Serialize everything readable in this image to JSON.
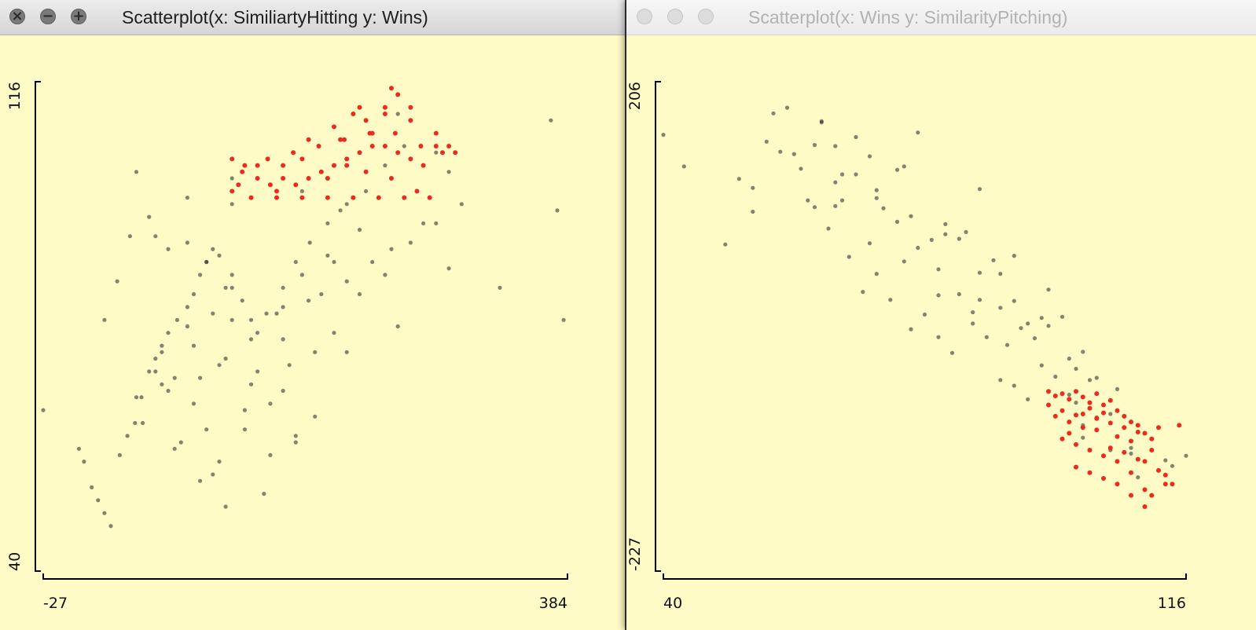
{
  "windows": [
    {
      "title": "Scatterplot(x: SimiliartyHitting y: Wins)",
      "active": true
    },
    {
      "title": "Scatterplot(x: Wins y: SimilarityPitching)",
      "active": false
    }
  ],
  "colors": {
    "background": "#fefbc6",
    "point": "#333333",
    "highlight": "#ee2a1e"
  },
  "chart_data": [
    {
      "type": "scatter",
      "title": "Scatterplot(x: SimiliartyHitting y: Wins)",
      "xlabel": "SimiliartyHitting",
      "ylabel": "Wins",
      "xlim": [
        -27,
        384
      ],
      "ylim": [
        40,
        116
      ],
      "x_tick_labels": [
        "-27",
        "384"
      ],
      "y_tick_labels": [
        "40",
        "116"
      ],
      "grid": false,
      "series": [
        {
          "name": "",
          "color": "#333333",
          "x": [
            -27,
            1,
            5,
            11,
            16,
            21,
            26,
            33,
            39,
            45,
            50,
            56,
            61,
            66,
            71,
            66,
            78,
            86,
            91,
            96,
            101,
            106,
            111,
            116,
            121,
            129,
            136,
            141,
            148,
            161,
            171,
            182,
            196,
            211,
            226,
            241,
            251,
            256,
            271,
            291,
            331,
            376,
            381,
            371,
            46,
            61,
            86,
            121,
            176,
            206,
            221,
            201,
            181,
            156,
            136,
            111,
            96,
            71,
            51,
            81,
            101,
            131,
            151,
            141,
            116,
            91,
            121,
            161,
            191,
            211,
            231,
            246,
            176,
            196,
            161,
            121,
            106,
            86,
            66,
            76,
            91,
            136,
            166,
            211,
            251,
            161,
            131,
            111,
            96,
            151,
            171,
            186,
            101,
            71,
            41,
            31,
            21,
            56,
            121,
            86,
            61,
            46,
            76,
            106,
            116,
            146,
            171,
            186,
            201,
            221,
            241,
            261,
            281,
            301,
            291,
            281
          ],
          "y": [
            65,
            59,
            57,
            53,
            51,
            49,
            47,
            58,
            61,
            63,
            67,
            71,
            73,
            75,
            77,
            69,
            79,
            81,
            83,
            86,
            88,
            90,
            89,
            84,
            86,
            82,
            79,
            77,
            80,
            84,
            88,
            91,
            94,
            97,
            99,
            103,
            111,
            106,
            94,
            87,
            84,
            96,
            79,
            110,
            102,
            92,
            91,
            97,
            99,
            96,
            93,
            88,
            82,
            80,
            76,
            72,
            70,
            68,
            63,
            60,
            62,
            65,
            66,
            71,
            73,
            75,
            79,
            81,
            83,
            85,
            88,
            90,
            86,
            89,
            76,
            84,
            80,
            78,
            74,
            70,
            66,
            69,
            72,
            74,
            78,
            68,
            62,
            57,
            54,
            58,
            61,
            64,
            88,
            90,
            92,
            85,
            79,
            95,
            101,
            98,
            71,
            67,
            59,
            55,
            50,
            52,
            60,
            74,
            77,
            83,
            86,
            91,
            94,
            97,
            102,
            105
          ]
        },
        {
          "name": "",
          "color": "#ee2a1e",
          "x": [
            121,
            129,
            141,
            151,
            161,
            171,
            181,
            191,
            201,
            211,
            221,
            231,
            241,
            251,
            261,
            271,
            281,
            291,
            121,
            136,
            156,
            176,
            196,
            216,
            236,
            256,
            276,
            266,
            246,
            226,
            211,
            196,
            176,
            156,
            141,
            126,
            131,
            149,
            169,
            189,
            209,
            229,
            249,
            269,
            286,
            296,
            281,
            261,
            241,
            221,
            201,
            181,
            161,
            216,
            231,
            241,
            246,
            251,
            261,
            226,
            206
          ],
          "y": [
            104,
            102,
            101,
            100,
            101,
            100,
            101,
            102,
            103,
            104,
            105,
            106,
            106,
            105,
            104,
            103,
            106,
            106,
            99,
            98,
            98,
            98,
            98,
            98,
            98,
            98,
            98,
            99,
            101,
            102,
            103,
            101,
            104,
            99,
            103,
            100,
            103,
            104,
            105,
            106,
            107,
            108,
            108,
            106,
            105,
            105,
            108,
            110,
            111,
            112,
            109,
            107,
            103,
            111,
            108,
            112,
            115,
            114,
            112,
            110,
            107
          ]
        }
      ]
    },
    {
      "type": "scatter",
      "title": "Scatterplot(x: Wins y: SimilarityPitching)",
      "xlabel": "Wins",
      "ylabel": "SimilarityPitching",
      "xlim": [
        40,
        116
      ],
      "ylim": [
        -227,
        206
      ],
      "x_tick_labels": [
        "40",
        "116"
      ],
      "y_tick_labels": [
        "-227",
        "206"
      ],
      "grid": false,
      "series": [
        {
          "name": "",
          "color": "#333333",
          "x": [
            40,
            43,
            49,
            51,
            53,
            55,
            56,
            58,
            59,
            62,
            63,
            65,
            66,
            68,
            70,
            72,
            74,
            75,
            77,
            79,
            81,
            83,
            84,
            86,
            88,
            89,
            91,
            93,
            95,
            96,
            98,
            100,
            101,
            103,
            105,
            106,
            108,
            109,
            111,
            113,
            114,
            116,
            53,
            57,
            61,
            64,
            67,
            69,
            71,
            73,
            76,
            78,
            80,
            82,
            85,
            87,
            89,
            91,
            93,
            96,
            99,
            101,
            103,
            105,
            108,
            60,
            65,
            70,
            75,
            80,
            85,
            90,
            95,
            100,
            102,
            62,
            66,
            71,
            76,
            81,
            86,
            91,
            96,
            101,
            99,
            97,
            94,
            92,
            89,
            86,
            83,
            80,
            77,
            74,
            71,
            68,
            65,
            63
          ],
          "y": [
            159,
            131,
            62,
            120,
            91,
            153,
            178,
            183,
            142,
            95,
            170,
            117,
            101,
            157,
            140,
            94,
            128,
            131,
            161,
            66,
            80,
            67,
            73,
            111,
            48,
            36,
            52,
            -8,
            -3,
            22,
            -2,
            -78,
            -109,
            -56,
            -88,
            -66,
            -118,
            -144,
            -110,
            -129,
            -134,
            -125,
            112,
            144,
            101,
            76,
            51,
            20,
            36,
            13,
            -13,
            0,
            -20,
            -34,
            -8,
            -20,
            -58,
            -63,
            -75,
            -80,
            -71,
            -98,
            -91,
            -120,
            -123,
            129,
            96,
            63,
            47,
            17,
            2,
            -27,
            -45,
            -48,
            -58,
            150,
            124,
            110,
            87,
            71,
            37,
            12,
            -10,
            -33,
            -39,
            -55,
            -21,
            -12,
            6,
            13,
            18,
            40,
            59,
            82,
            103,
            124,
            149,
            171
          ]
        },
        {
          "name": "",
          "color": "#ee2a1e",
          "x": [
            96,
            97,
            98,
            99,
            100,
            101,
            102,
            103,
            104,
            105,
            106,
            107,
            108,
            109,
            110,
            111,
            112,
            97,
            99,
            101,
            103,
            105,
            107,
            109,
            111,
            113,
            115,
            98,
            100,
            102,
            104,
            106,
            108,
            110,
            96,
            98,
            100,
            102,
            104,
            106,
            108,
            110,
            112,
            114,
            100,
            102,
            104,
            106,
            108,
            110,
            99,
            101,
            103,
            105,
            107,
            109,
            111,
            113
          ],
          "y": [
            -68,
            -72,
            -70,
            -75,
            -68,
            -73,
            -78,
            -70,
            -80,
            -76,
            -85,
            -90,
            -95,
            -98,
            -105,
            -110,
            -100,
            -90,
            -95,
            -88,
            -92,
            -96,
            -100,
            -104,
            -120,
            -150,
            -98,
            -110,
            -115,
            -120,
            -125,
            -130,
            -140,
            -155,
            -80,
            -85,
            -89,
            -83,
            -87,
            -108,
            -112,
            -130,
            -138,
            -150,
            -135,
            -140,
            -145,
            -150,
            -160,
            -170,
            -105,
            -100,
            -102,
            -118,
            -122,
            -128,
            -160,
            -142
          ]
        }
      ]
    }
  ]
}
